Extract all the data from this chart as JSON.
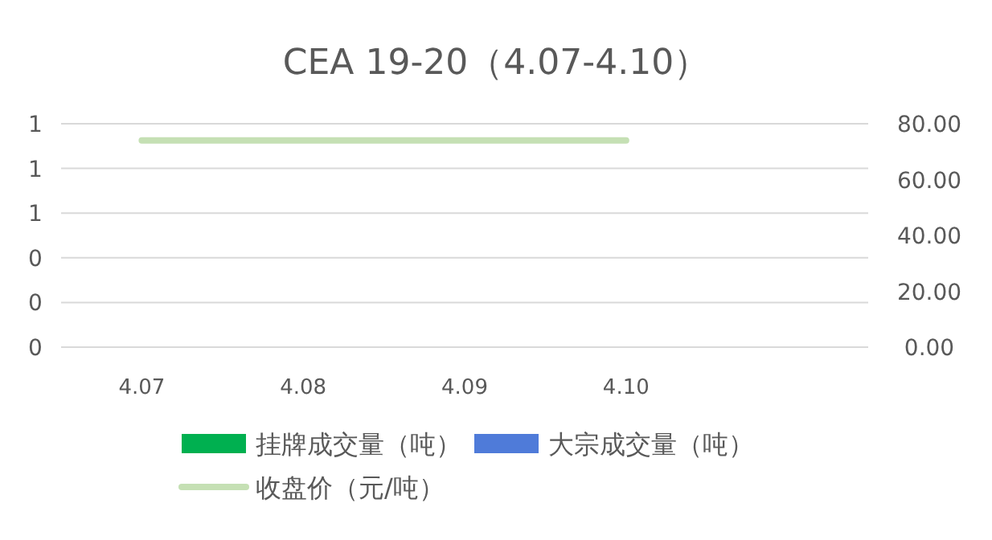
{
  "chart_data": {
    "type": "bar",
    "title": "CEA 19-20（4.07-4.10）",
    "categories": [
      "4.07",
      "4.08",
      "4.09",
      "4.10",
      null
    ],
    "series": [
      {
        "name": "挂牌成交量（吨）",
        "color": "#00b050",
        "values": [
          null,
          null,
          null,
          null,
          null
        ]
      },
      {
        "name": "大宗成交量（吨）",
        "color": "#4f7bd9",
        "values": [
          null,
          null,
          null,
          null,
          null
        ]
      },
      {
        "name": "收盘价（元/吨）",
        "color": "#c5e0b4",
        "type": "line",
        "axis": "y2",
        "values": [
          74,
          74,
          74,
          74,
          null
        ]
      }
    ],
    "ylim": [
      0,
      1
    ],
    "yticks": [
      {
        "value": 0,
        "label": "0"
      },
      {
        "value": 0.2,
        "label": "0"
      },
      {
        "value": 0.4,
        "label": "0"
      },
      {
        "value": 0.6,
        "label": "1"
      },
      {
        "value": 0.8,
        "label": "1"
      },
      {
        "value": 1,
        "label": "1"
      }
    ],
    "y2lim": [
      0,
      80
    ],
    "y2ticks": [
      {
        "value": 0,
        "label": "0.00"
      },
      {
        "value": 20,
        "label": "20.00"
      },
      {
        "value": 40,
        "label": "40.00"
      },
      {
        "value": 60,
        "label": "60.00"
      },
      {
        "value": 80,
        "label": "80.00"
      }
    ],
    "grid": "y",
    "legend": "bottom"
  }
}
